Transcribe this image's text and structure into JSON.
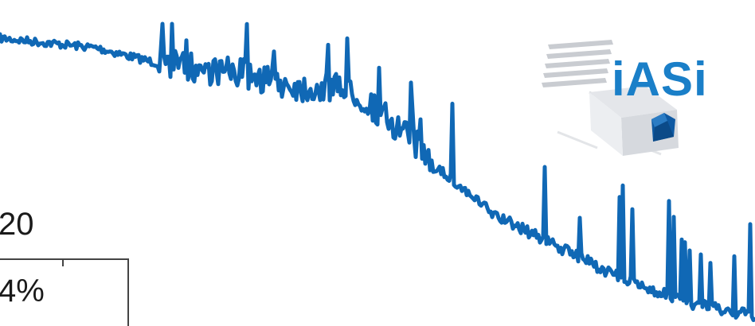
{
  "logo": {
    "text": "iASi",
    "icon": "satellite-icon",
    "brand_color": "#1a7fc8"
  },
  "fragments": {
    "number": "20",
    "percent": "4%"
  },
  "spectrum": {
    "series_color": "#1068b5"
  }
}
